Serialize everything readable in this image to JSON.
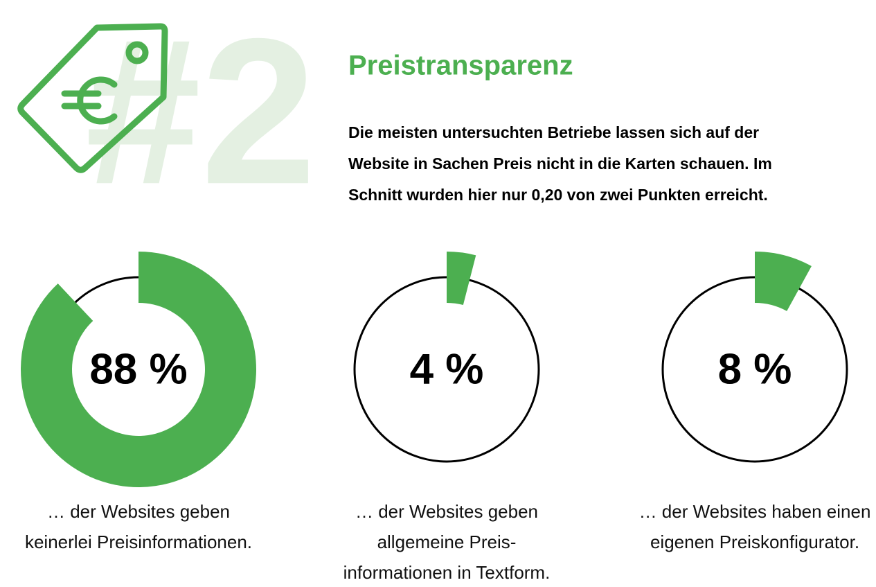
{
  "header": {
    "number": "#2",
    "title": "Preistransparenz",
    "text": [
      "Die meisten untersuchten Betriebe lassen sich auf der",
      "Website in Sachen Preis nicht in die Karten schauen. Im",
      "Schnitt wurden hier nur 0,20 von zwei Punkten erreicht."
    ]
  },
  "chart_data": [
    {
      "type": "donut",
      "values": [
        88
      ],
      "value_labels": [
        "88 %"
      ],
      "color": "#4caf50",
      "caption": [
        "… der Websites geben",
        "keinerlei Preisinformationen."
      ]
    },
    {
      "type": "donut",
      "values": [
        4
      ],
      "value_labels": [
        "4 %"
      ],
      "color": "#4caf50",
      "caption": [
        "… der Websites geben",
        "allgemeine Preis-",
        "informationen in Textform."
      ]
    },
    {
      "type": "donut",
      "values": [
        8
      ],
      "value_labels": [
        "8 %"
      ],
      "color": "#4caf50",
      "caption": [
        "… der Websites haben einen",
        "eigenen Preiskonfigurator."
      ]
    }
  ]
}
